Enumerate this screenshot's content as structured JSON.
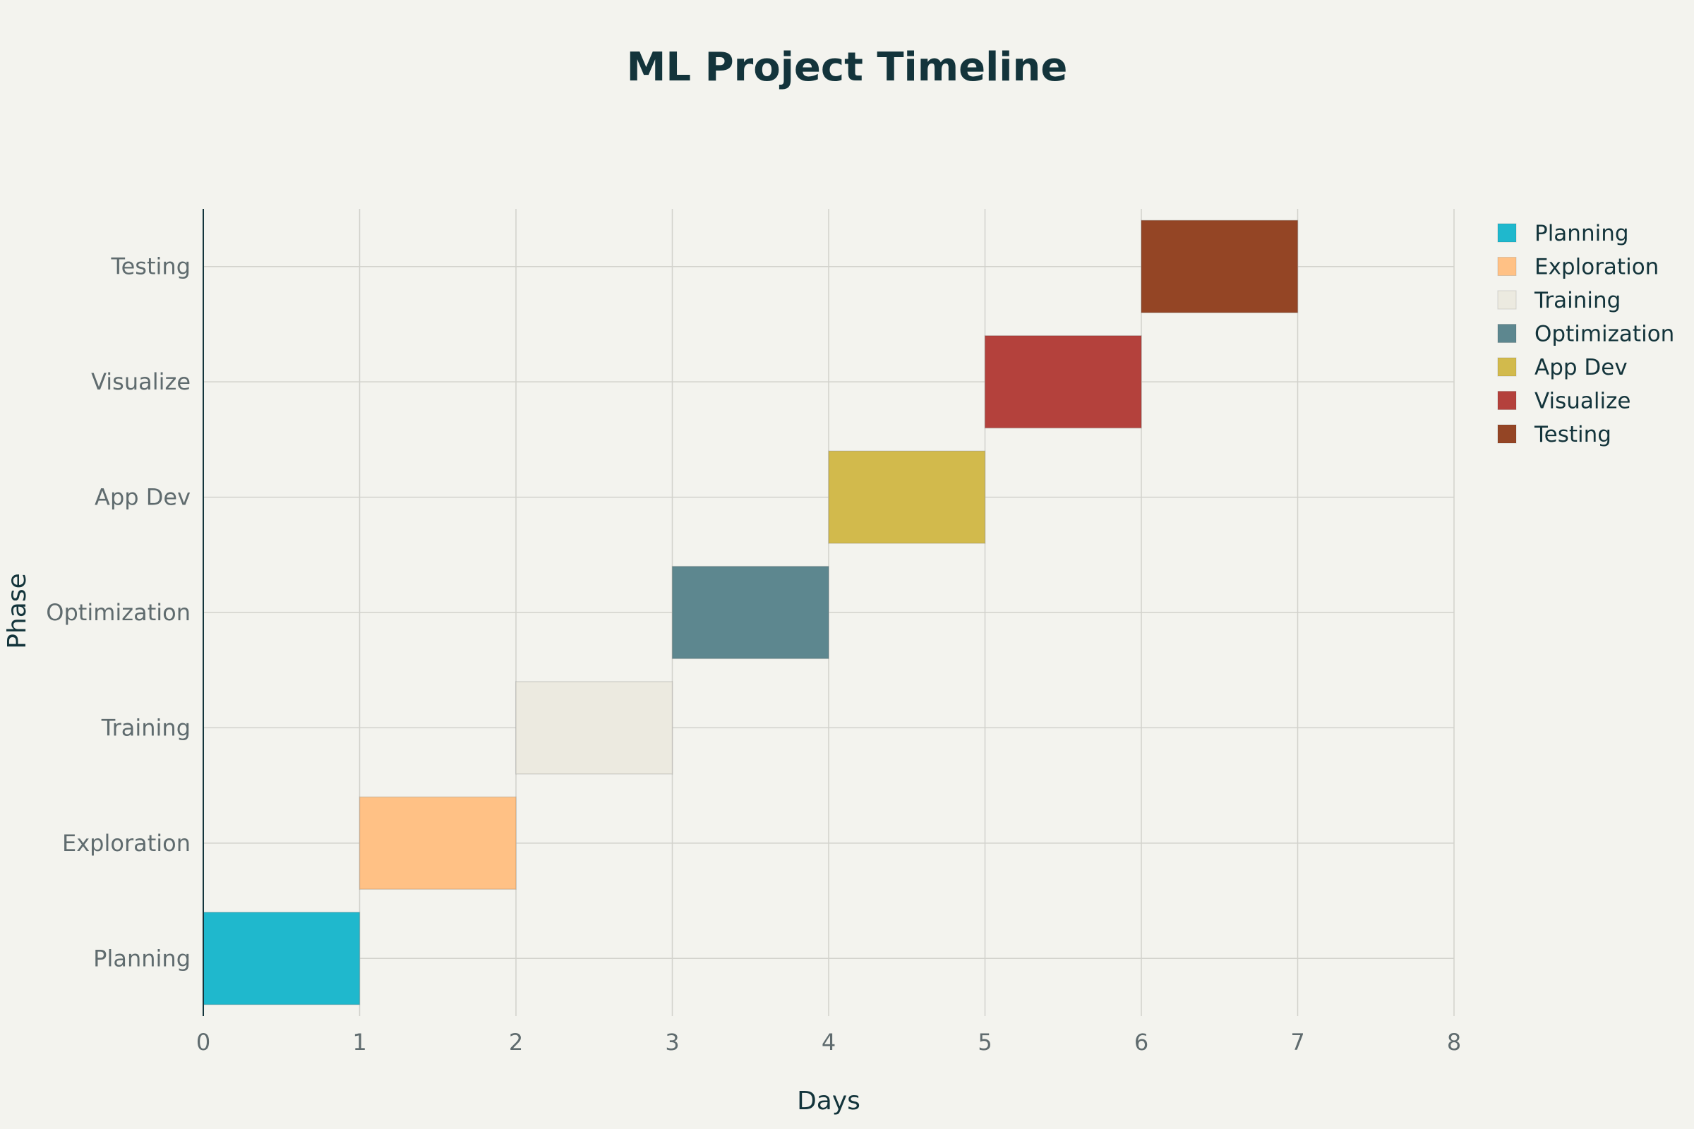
{
  "chart_data": {
    "type": "bar",
    "orientation": "horizontal",
    "title": "ML Project Timeline",
    "xlabel": "Days",
    "ylabel": "Phase",
    "xlim": [
      0,
      8
    ],
    "x_ticks": [
      0,
      1,
      2,
      3,
      4,
      5,
      6,
      7,
      8
    ],
    "grid": true,
    "legend_position": "top-right",
    "categories": [
      "Planning",
      "Exploration",
      "Training",
      "Optimization",
      "App Dev",
      "Visualize",
      "Testing"
    ],
    "series": [
      {
        "name": "Planning",
        "start": 0,
        "end": 1,
        "color": "#1fb8cd"
      },
      {
        "name": "Exploration",
        "start": 1,
        "end": 2,
        "color": "#ffc185"
      },
      {
        "name": "Training",
        "start": 2,
        "end": 3,
        "color": "#eceae0"
      },
      {
        "name": "Optimization",
        "start": 3,
        "end": 4,
        "color": "#5d878f"
      },
      {
        "name": "App Dev",
        "start": 4,
        "end": 5,
        "color": "#d2ba4c"
      },
      {
        "name": "Visualize",
        "start": 5,
        "end": 6,
        "color": "#b4413c"
      },
      {
        "name": "Testing",
        "start": 6,
        "end": 7,
        "color": "#944525"
      }
    ]
  }
}
